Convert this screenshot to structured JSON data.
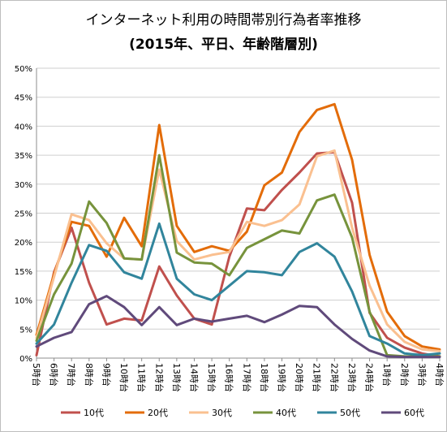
{
  "chart_data": {
    "type": "line",
    "title": "インターネット利用の時間帯別行為者率推移",
    "subtitle": "(2015年、平日、年齢階層別)",
    "x": [
      "5時台",
      "6時台",
      "7時台",
      "8時台",
      "9時台",
      "10時台",
      "11時台",
      "12時台",
      "13時台",
      "14時台",
      "15時台",
      "16時台",
      "17時台",
      "18時台",
      "19時台",
      "20時台",
      "21時台",
      "22時台",
      "23時台",
      "24時台",
      "1時台",
      "2時台",
      "3時台",
      "4時台"
    ],
    "y_ticks": [
      "0%",
      "5%",
      "10%",
      "15%",
      "20%",
      "25%",
      "30%",
      "35%",
      "40%",
      "45%",
      "50%"
    ],
    "ylim": [
      0,
      50
    ],
    "grid": true,
    "legend_position": "bottom",
    "series": [
      {
        "name": "10代",
        "color": "#c0504d",
        "values": [
          0.5,
          14.8,
          22.5,
          13.0,
          5.8,
          6.8,
          6.5,
          15.8,
          10.8,
          6.8,
          5.8,
          17.5,
          25.8,
          25.5,
          29.0,
          32.0,
          35.3,
          35.5,
          26.8,
          7.8,
          3.5,
          1.8,
          0.8,
          0.3
        ]
      },
      {
        "name": "20代",
        "color": "#e36c09",
        "values": [
          4.0,
          14.5,
          23.5,
          22.8,
          17.5,
          24.2,
          19.3,
          40.2,
          22.8,
          18.3,
          19.3,
          18.5,
          21.8,
          29.8,
          32.0,
          39.0,
          42.8,
          43.8,
          34.2,
          17.8,
          8.0,
          3.8,
          2.0,
          1.5
        ]
      },
      {
        "name": "30代",
        "color": "#fac090",
        "values": [
          3.5,
          14.0,
          24.8,
          23.8,
          19.8,
          17.2,
          17.0,
          32.5,
          20.2,
          17.0,
          17.8,
          18.3,
          23.5,
          22.8,
          23.8,
          26.5,
          34.8,
          35.8,
          22.5,
          12.5,
          5.8,
          2.8,
          1.5,
          1.2
        ]
      },
      {
        "name": "40代",
        "color": "#77933c",
        "values": [
          3.0,
          11.0,
          16.3,
          27.0,
          23.3,
          17.2,
          17.0,
          35.0,
          18.2,
          16.5,
          16.3,
          14.3,
          19.0,
          20.5,
          22.0,
          21.5,
          27.2,
          28.2,
          20.8,
          8.0,
          0.5,
          0.3,
          0.3,
          0.3
        ]
      },
      {
        "name": "50代",
        "color": "#31859c",
        "values": [
          2.5,
          5.8,
          13.0,
          19.5,
          18.5,
          14.8,
          13.7,
          23.2,
          13.7,
          11.0,
          10.0,
          12.5,
          15.0,
          14.8,
          14.3,
          18.3,
          19.8,
          17.5,
          11.5,
          3.8,
          2.5,
          0.8,
          0.5,
          0.8
        ]
      },
      {
        "name": "60代",
        "color": "#604a7b",
        "values": [
          2.0,
          3.5,
          4.5,
          9.3,
          10.7,
          8.8,
          5.7,
          8.8,
          5.7,
          6.8,
          6.3,
          6.8,
          7.3,
          6.2,
          7.5,
          9.0,
          8.8,
          5.8,
          3.3,
          1.3,
          0.3,
          0.2,
          0.2,
          0.2
        ]
      }
    ]
  }
}
